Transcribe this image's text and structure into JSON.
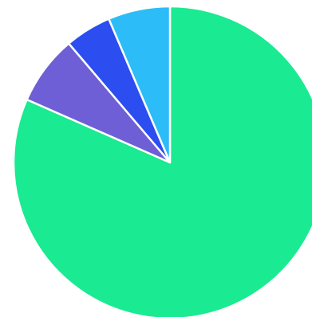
{
  "chart_data": {
    "type": "pie",
    "title": "",
    "slices": [
      {
        "value": 81.6,
        "color": "#1aea91"
      },
      {
        "value": 7.2,
        "color": "#6f5fd6"
      },
      {
        "value": 4.8,
        "color": "#2c4df0"
      },
      {
        "value": 6.4,
        "color": "#2cbcf8"
      }
    ],
    "start_angle": "12 o'clock",
    "direction": "clockwise",
    "slice_border_color": "#ffffff",
    "legend": "none"
  }
}
